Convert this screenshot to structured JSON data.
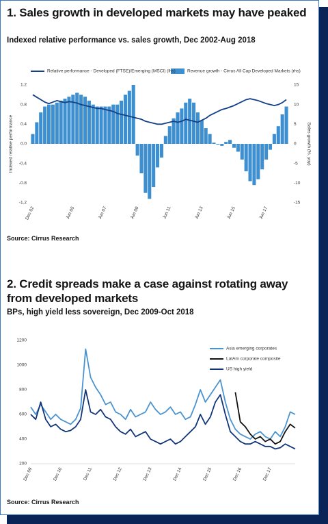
{
  "chart_data": [
    {
      "type": "combo",
      "title": "1. Sales growth in developed markets may have peaked",
      "subtitle": "Indexed relative performance vs. sales growth, Dec 2002-Aug 2018",
      "source": "Source: Cirrus Research",
      "ylabel": "Indexed relative performance",
      "y2label": "Sales growth (%, yoy)",
      "legend": "top",
      "categories": [
        "Dec 02",
        null,
        null,
        null,
        null,
        null,
        null,
        null,
        null,
        null,
        "Jun 05",
        null,
        null,
        null,
        null,
        null,
        null,
        null,
        "Jun 07",
        null,
        null,
        null,
        null,
        null,
        null,
        null,
        "Jun 09",
        null,
        null,
        null,
        null,
        null,
        null,
        null,
        "Jun 11",
        null,
        null,
        null,
        null,
        null,
        null,
        null,
        "Jun 13",
        null,
        null,
        null,
        null,
        null,
        null,
        null,
        "Jun 15",
        null,
        null,
        null,
        null,
        null,
        null,
        null,
        "Jun 17",
        null,
        null,
        null,
        null,
        null
      ],
      "ylim": [
        -1.2,
        1.2
      ],
      "yticks": [
        1.2,
        0.8,
        0.4,
        {
          "value": 0,
          "label": "0.0"
        },
        -0.4,
        -0.8,
        -1.2
      ],
      "y2lim": [
        -15,
        15
      ],
      "y2ticks": [
        15,
        10,
        5,
        0,
        -5,
        -10,
        -15
      ],
      "series": [
        {
          "name": "Revenue growth - Cirrus All Cap Developed Markets (rhs)",
          "type": "bar",
          "axis": "y2",
          "color": "#3d8fd0",
          "values": [
            2.5,
            5.5,
            8,
            9.5,
            10,
            10,
            10.5,
            11,
            11.5,
            12,
            12.5,
            13,
            12.5,
            12,
            11,
            10,
            9.5,
            9.5,
            9.5,
            9.5,
            10,
            10,
            11,
            12.5,
            13.5,
            15,
            -3,
            -7.5,
            -12.5,
            -14,
            -11,
            -6,
            -3.5,
            2,
            4.5,
            6.5,
            8,
            9,
            10.5,
            11.5,
            10.5,
            8,
            6,
            4,
            2.5,
            0.3,
            -0.2,
            -0.5,
            0.5,
            1,
            -1,
            -2,
            -4,
            -7,
            -9.5,
            -10.5,
            -9,
            -6.5,
            -4,
            -1.5,
            2.5,
            4.5,
            7.5,
            9.5
          ]
        },
        {
          "name": "Relative performance - Developed (FTSE)/Emerging (MSCI) (lhs)",
          "type": "line",
          "color": "#123f86",
          "values": [
            1.0,
            0.95,
            0.9,
            0.85,
            0.82,
            0.85,
            0.88,
            0.86,
            0.84,
            0.86,
            0.85,
            0.83,
            0.8,
            0.78,
            0.76,
            0.74,
            0.72,
            0.72,
            0.7,
            0.68,
            0.66,
            0.62,
            0.6,
            0.58,
            0.56,
            0.54,
            0.52,
            0.5,
            0.46,
            0.44,
            0.42,
            0.4,
            0.4,
            0.42,
            0.44,
            0.46,
            0.44,
            0.46,
            0.5,
            0.48,
            0.46,
            0.44,
            0.48,
            0.52,
            0.58,
            0.62,
            0.66,
            0.7,
            0.72,
            0.75,
            0.78,
            0.82,
            0.86,
            0.9,
            0.92,
            0.9,
            0.88,
            0.85,
            0.82,
            0.8,
            0.78,
            0.8,
            0.84,
            0.9
          ]
        }
      ]
    },
    {
      "type": "line",
      "title": "2. Credit spreads make a case against rotating away from developed markets",
      "subtitle": "BPs, high yield less sovereign, Dec 2009-Oct 2018",
      "source": "Source: Cirrus Research",
      "legend": "upper right",
      "categories": [
        "Dec 09",
        null,
        null,
        null,
        null,
        null,
        "Dec 10",
        null,
        null,
        null,
        null,
        null,
        "Dec 11",
        null,
        null,
        null,
        null,
        null,
        "Dec 12",
        null,
        null,
        null,
        null,
        null,
        "Dec 13",
        null,
        null,
        null,
        null,
        null,
        "Dec 14",
        null,
        null,
        null,
        null,
        null,
        "Dec 15",
        null,
        null,
        null,
        null,
        null,
        "Dec 16",
        null,
        null,
        null,
        null,
        null,
        "Dec 17",
        null,
        null,
        null,
        null,
        null
      ],
      "ylim": [
        200,
        1200
      ],
      "yticks": [
        1200,
        1000,
        800,
        600,
        400,
        200
      ],
      "series": [
        {
          "name": "Asia emerging corporates",
          "color": "#4b93cf",
          "values": [
            660,
            600,
            680,
            620,
            560,
            600,
            560,
            540,
            520,
            560,
            650,
            1130,
            900,
            820,
            760,
            680,
            700,
            620,
            600,
            560,
            640,
            580,
            600,
            620,
            700,
            640,
            600,
            620,
            660,
            600,
            620,
            560,
            580,
            680,
            800,
            700,
            760,
            820,
            880,
            700,
            560,
            480,
            440,
            420,
            400,
            440,
            460,
            420,
            400,
            460,
            420,
            500,
            620,
            600
          ]
        },
        {
          "name": "LatAm corporate composite",
          "color": "#111111",
          "values": [
            null,
            null,
            null,
            null,
            null,
            null,
            null,
            null,
            null,
            null,
            null,
            null,
            null,
            null,
            null,
            null,
            null,
            null,
            null,
            null,
            null,
            null,
            null,
            null,
            null,
            null,
            null,
            null,
            null,
            null,
            null,
            null,
            null,
            null,
            null,
            null,
            null,
            null,
            null,
            null,
            null,
            780,
            540,
            500,
            440,
            400,
            420,
            380,
            400,
            360,
            380,
            460,
            520,
            490
          ]
        },
        {
          "name": "US high yield",
          "color": "#12357a",
          "values": [
            600,
            560,
            700,
            560,
            500,
            520,
            480,
            460,
            470,
            500,
            560,
            800,
            620,
            600,
            640,
            580,
            560,
            500,
            460,
            440,
            480,
            420,
            440,
            460,
            400,
            380,
            360,
            380,
            400,
            360,
            380,
            420,
            460,
            500,
            600,
            520,
            580,
            700,
            760,
            600,
            460,
            420,
            380,
            360,
            360,
            380,
            360,
            340,
            340,
            320,
            330,
            360,
            340,
            320
          ]
        }
      ]
    }
  ]
}
